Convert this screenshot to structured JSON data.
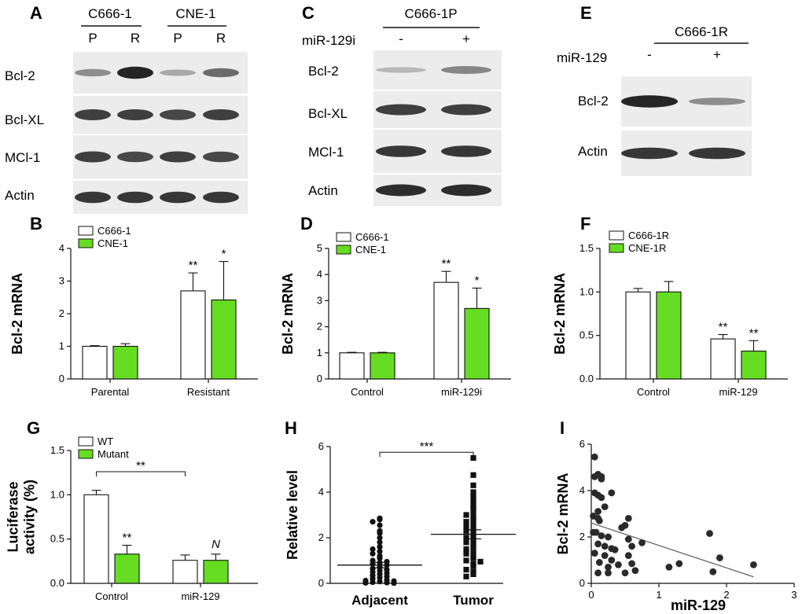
{
  "colors": {
    "accent": "#66dd22",
    "open_bar": "#ffffff",
    "ink": "#111111",
    "blot_bg": "#ececec",
    "band": "#1c1c1c"
  },
  "blot_a": {
    "letter": "A",
    "group_labels": [
      "C666-1",
      "CNE-1"
    ],
    "lane_labels": [
      "P",
      "R",
      "P",
      "R"
    ],
    "rows": [
      {
        "label": "Bcl-2",
        "intensity": [
          0.35,
          0.95,
          0.2,
          0.55
        ]
      },
      {
        "label": "Bcl-XL",
        "intensity": [
          0.8,
          0.8,
          0.75,
          0.8
        ]
      },
      {
        "label": "MCl-1",
        "intensity": [
          0.8,
          0.75,
          0.8,
          0.75
        ]
      },
      {
        "label": "Actin",
        "intensity": [
          0.85,
          0.85,
          0.85,
          0.85
        ]
      }
    ]
  },
  "blot_c": {
    "letter": "C",
    "group_label": "C666-1P",
    "treatment_label": "miR-129i",
    "treatment_signs": [
      "-",
      "+"
    ],
    "rows": [
      {
        "label": "Bcl-2",
        "intensity": [
          0.12,
          0.4
        ]
      },
      {
        "label": "Bcl-XL",
        "intensity": [
          0.8,
          0.8
        ]
      },
      {
        "label": "MCl-1",
        "intensity": [
          0.85,
          0.85
        ]
      },
      {
        "label": "Actin",
        "intensity": [
          0.9,
          0.9
        ]
      }
    ]
  },
  "blot_e": {
    "letter": "E",
    "group_label": "C666-1R",
    "treatment_label": "miR-129",
    "treatment_signs": [
      "-",
      "+"
    ],
    "rows": [
      {
        "label": "Bcl-2",
        "intensity": [
          0.95,
          0.35
        ]
      },
      {
        "label": "Actin",
        "intensity": [
          0.85,
          0.85
        ]
      }
    ]
  },
  "chart_data": [
    {
      "panel": "B",
      "type": "bar",
      "ylabel": "Bcl-2 mRNA",
      "ylim": [
        0,
        4
      ],
      "yticks": [
        "0",
        "1",
        "2",
        "3",
        "4"
      ],
      "categories": [
        "Parental",
        "Resistant"
      ],
      "series": [
        {
          "name": "C666-1",
          "color": "#ffffff",
          "values": [
            1.0,
            2.7
          ],
          "errors": [
            0.02,
            0.55
          ]
        },
        {
          "name": "CNE-1",
          "color": "#66dd22",
          "values": [
            1.0,
            2.42
          ],
          "errors": [
            0.08,
            1.18
          ]
        }
      ],
      "sig": [
        [
          "",
          ""
        ],
        [
          "**",
          "*"
        ]
      ]
    },
    {
      "panel": "D",
      "type": "bar",
      "ylabel": "Bcl-2 mRNA",
      "ylim": [
        0,
        5
      ],
      "yticks": [
        "0",
        "1",
        "2",
        "3",
        "4",
        "5"
      ],
      "categories": [
        "Control",
        "miR-129i"
      ],
      "series": [
        {
          "name": "C666-1",
          "color": "#ffffff",
          "values": [
            1.0,
            3.7
          ],
          "errors": [
            0.02,
            0.42
          ]
        },
        {
          "name": "CNE-1",
          "color": "#66dd22",
          "values": [
            1.0,
            2.7
          ],
          "errors": [
            0.02,
            0.78
          ]
        }
      ],
      "sig": [
        [
          "",
          ""
        ],
        [
          "**",
          "*"
        ]
      ]
    },
    {
      "panel": "F",
      "type": "bar",
      "ylabel": "Bcl-2 mRNA",
      "ylim": [
        0,
        1.5
      ],
      "yticks": [
        "0.0",
        "0.5",
        "1.0",
        "1.5"
      ],
      "categories": [
        "Control",
        "miR-129"
      ],
      "series": [
        {
          "name": "C666-1R",
          "color": "#ffffff",
          "values": [
            1.0,
            0.46
          ],
          "errors": [
            0.04,
            0.05
          ]
        },
        {
          "name": "CNE-1R",
          "color": "#66dd22",
          "values": [
            1.0,
            0.32
          ],
          "errors": [
            0.12,
            0.12
          ]
        }
      ],
      "sig": [
        [
          "",
          ""
        ],
        [
          "**",
          "**"
        ]
      ]
    },
    {
      "panel": "G",
      "type": "bar",
      "ylabel": "Luciferase activity (%)",
      "ylim": [
        0,
        1.5
      ],
      "yticks": [
        "0.0",
        "0.5",
        "1.0",
        "1.5"
      ],
      "categories": [
        "Control",
        "miR-129"
      ],
      "series": [
        {
          "name": "WT",
          "color": "#ffffff",
          "values": [
            1.0,
            0.26
          ],
          "errors": [
            0.05,
            0.06
          ]
        },
        {
          "name": "Mutant",
          "color": "#66dd22",
          "values": [
            0.33,
            0.26
          ],
          "errors": [
            0.1,
            0.07
          ]
        }
      ],
      "sig": [
        [
          "",
          "**"
        ],
        [
          "",
          "N"
        ]
      ],
      "bracket": {
        "label": "**",
        "from": [
          0,
          0
        ],
        "to": [
          1,
          0
        ],
        "y": 1.26
      }
    },
    {
      "panel": "H",
      "type": "scatter",
      "ylabel": "Relative level",
      "ylim": [
        0,
        6
      ],
      "yticks": [
        "0",
        "2",
        "4",
        "6"
      ],
      "categories": [
        "Adjacent",
        "Tumor"
      ],
      "groups": [
        {
          "name": "Adjacent",
          "marker": "circle",
          "mean": 0.8,
          "sem": 0.12,
          "values": [
            2.85,
            2.8,
            2.7,
            2.55,
            2.3,
            2.2,
            2.0,
            1.8,
            1.6,
            1.5,
            1.4,
            1.3,
            1.2,
            1.1,
            1.0,
            0.95,
            0.9,
            0.85,
            0.8,
            0.7,
            0.65,
            0.6,
            0.55,
            0.5,
            0.45,
            0.4,
            0.35,
            0.3,
            0.25,
            0.2,
            0.15,
            0.12,
            0.1,
            0.08,
            0.05,
            0.03,
            0.02,
            0.01
          ]
        },
        {
          "name": "Tumor",
          "marker": "square",
          "mean": 2.15,
          "sem": 0.2,
          "values": [
            5.5,
            4.75,
            4.3,
            4.0,
            3.8,
            3.6,
            3.4,
            3.3,
            3.1,
            3.0,
            2.9,
            2.8,
            2.7,
            2.6,
            2.5,
            2.4,
            2.3,
            2.2,
            2.1,
            2.0,
            1.9,
            1.8,
            1.7,
            1.6,
            1.5,
            1.4,
            1.3,
            1.2,
            1.1,
            1.0,
            0.95,
            0.85,
            0.75,
            0.6,
            0.5,
            0.4,
            0.3
          ]
        }
      ],
      "bracket": {
        "label": "***",
        "y": 5.75
      }
    },
    {
      "panel": "I",
      "type": "scatter",
      "xlabel": "miR-129",
      "ylabel": "Bcl-2 mRNA",
      "xlim": [
        0,
        3
      ],
      "ylim": [
        0,
        6
      ],
      "xticks": [
        "0",
        "1",
        "2",
        "3"
      ],
      "yticks": [
        "0",
        "2",
        "4",
        "6"
      ],
      "points": [
        [
          0.05,
          5.45
        ],
        [
          0.1,
          4.7
        ],
        [
          0.15,
          4.6
        ],
        [
          0.05,
          4.6
        ],
        [
          0.15,
          4.5
        ],
        [
          0.05,
          3.9
        ],
        [
          0.1,
          3.8
        ],
        [
          0.15,
          3.7
        ],
        [
          0.2,
          3.3
        ],
        [
          0.1,
          3.1
        ],
        [
          0.3,
          3.9
        ],
        [
          0.03,
          2.9
        ],
        [
          0.1,
          2.8
        ],
        [
          0.12,
          2.7
        ],
        [
          0.03,
          2.2
        ],
        [
          0.07,
          2.2
        ],
        [
          0.15,
          2.05
        ],
        [
          0.25,
          2.0
        ],
        [
          0.1,
          1.7
        ],
        [
          0.2,
          1.6
        ],
        [
          0.3,
          1.5
        ],
        [
          0.35,
          1.45
        ],
        [
          0.05,
          1.3
        ],
        [
          0.2,
          1.2
        ],
        [
          0.3,
          1.0
        ],
        [
          0.12,
          0.9
        ],
        [
          0.25,
          0.7
        ],
        [
          0.1,
          0.45
        ],
        [
          0.25,
          0.45
        ],
        [
          0.4,
          0.8
        ],
        [
          0.5,
          0.45
        ],
        [
          0.45,
          2.4
        ],
        [
          0.5,
          2.5
        ],
        [
          0.55,
          2.8
        ],
        [
          0.55,
          1.9
        ],
        [
          0.6,
          1.6
        ],
        [
          0.55,
          1.2
        ],
        [
          0.6,
          0.85
        ],
        [
          0.65,
          0.55
        ],
        [
          0.75,
          1.75
        ],
        [
          1.15,
          0.7
        ],
        [
          1.3,
          0.85
        ],
        [
          1.75,
          2.15
        ],
        [
          1.8,
          0.5
        ],
        [
          1.9,
          1.1
        ],
        [
          2.4,
          0.8
        ]
      ],
      "regression": {
        "x": [
          0,
          2.4
        ],
        "y": [
          2.6,
          0.28
        ]
      }
    }
  ]
}
